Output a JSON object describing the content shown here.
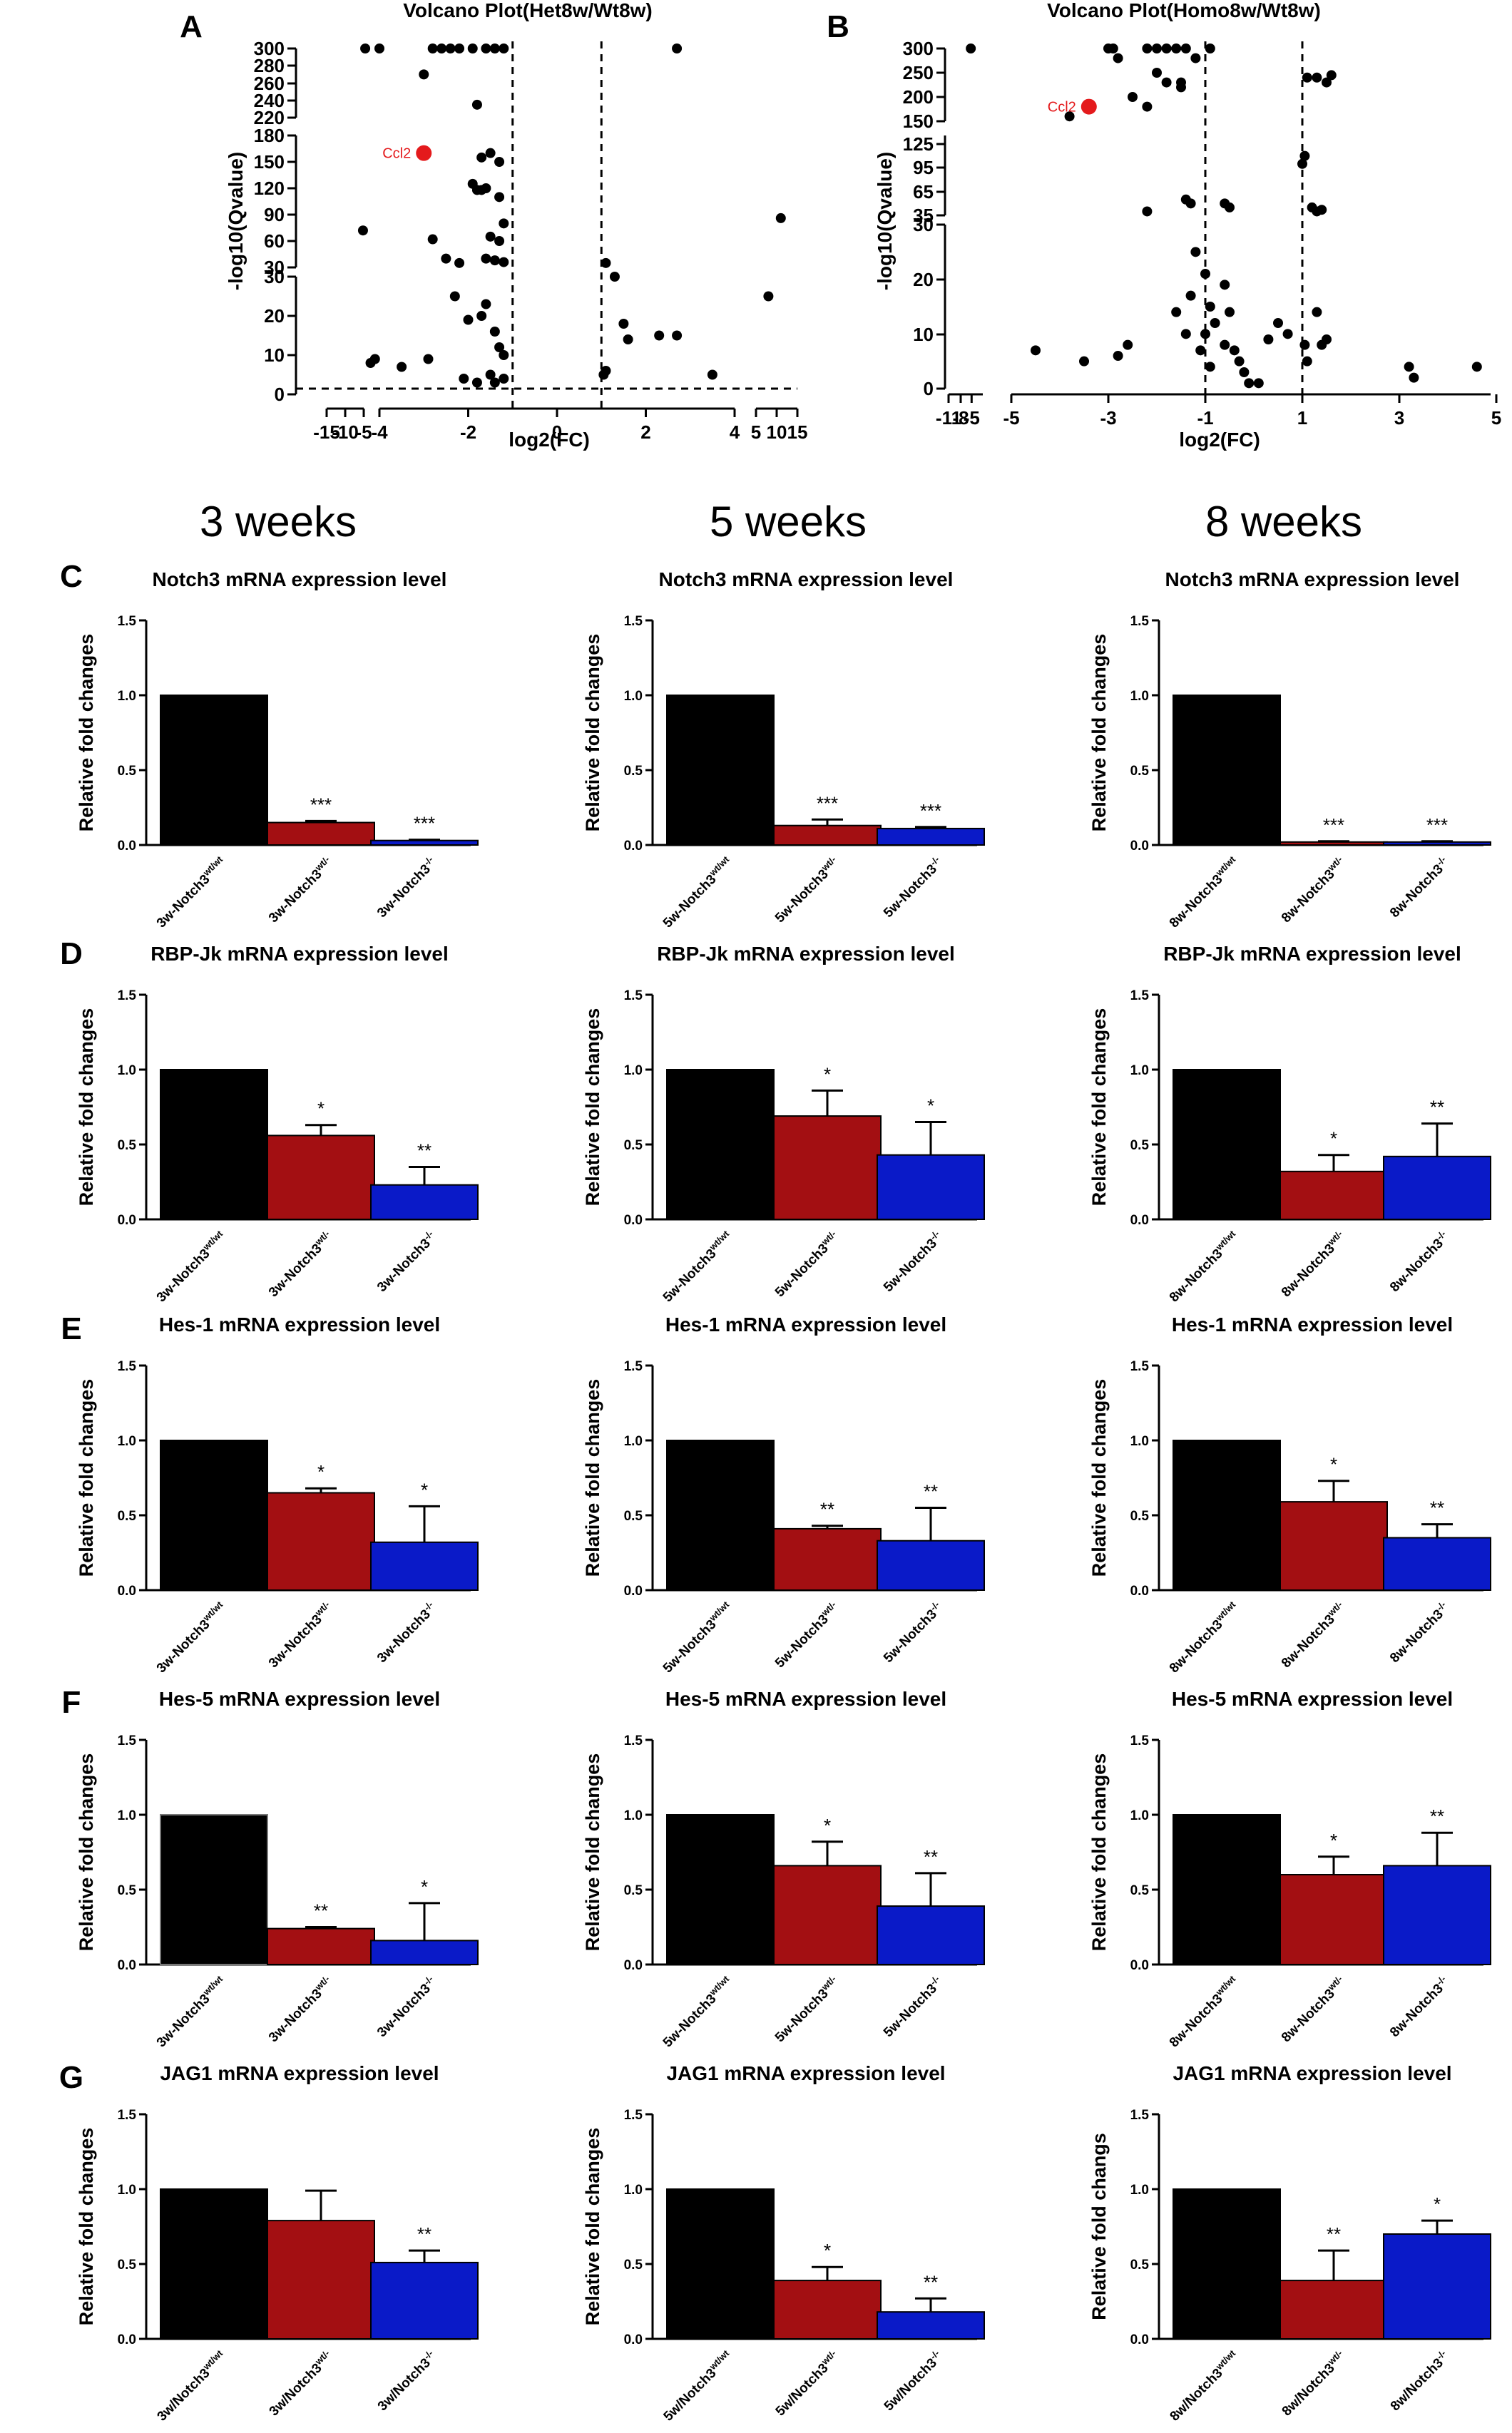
{
  "panel_letters": [
    "A",
    "B",
    "C",
    "D",
    "E",
    "F",
    "G"
  ],
  "weeks": [
    "3 weeks",
    "5 weeks",
    "8 weeks"
  ],
  "colors": {
    "wt": "#000000",
    "het": "#a30f12",
    "homo": "#0a1ac8",
    "ccl2": "#e41a1c",
    "point": "#000000"
  },
  "chart_data": [
    {
      "type": "scatter",
      "title": "Volcano Plot(Het8w/Wt8w)",
      "xlabel": "log2(FC)",
      "ylabel": "-log10(Qvalue)",
      "xticks": [
        "-15",
        "-10",
        "-5",
        "-4",
        "-2",
        "0",
        "2",
        "4",
        "5",
        "10",
        "15"
      ],
      "yticks": [
        "0",
        "10",
        "20",
        "30",
        "30",
        "60",
        "90",
        "120",
        "150",
        "180",
        "220",
        "240",
        "260",
        "280",
        "300"
      ],
      "thresholds": {
        "log2fc": [
          -1,
          1
        ],
        "qvalue_line": 1.3
      },
      "highlight": {
        "label": "Ccl2",
        "x": -3.0,
        "y": 160
      },
      "points": [
        [
          -4.6,
          300
        ],
        [
          -4.0,
          300
        ],
        [
          -2.8,
          300
        ],
        [
          -2.6,
          300
        ],
        [
          -2.4,
          300
        ],
        [
          -2.2,
          300
        ],
        [
          -1.9,
          300
        ],
        [
          -1.6,
          300
        ],
        [
          -1.4,
          300
        ],
        [
          -1.2,
          300
        ],
        [
          -3.0,
          270
        ],
        [
          -1.8,
          235
        ],
        [
          2.7,
          300
        ],
        [
          -5.2,
          72
        ],
        [
          -4.2,
          8
        ],
        [
          -4.1,
          9
        ],
        [
          -3.5,
          7
        ],
        [
          -2.8,
          62
        ],
        [
          -2.5,
          40
        ],
        [
          -2.2,
          35
        ],
        [
          -1.7,
          155
        ],
        [
          -1.5,
          160
        ],
        [
          -1.3,
          150
        ],
        [
          -1.6,
          120
        ],
        [
          -1.9,
          125
        ],
        [
          -1.8,
          118
        ],
        [
          -1.7,
          118
        ],
        [
          -1.3,
          110
        ],
        [
          -1.2,
          80
        ],
        [
          -1.5,
          65
        ],
        [
          -1.3,
          60
        ],
        [
          -1.6,
          40
        ],
        [
          -1.4,
          38
        ],
        [
          -1.2,
          36
        ],
        [
          -2.3,
          25
        ],
        [
          -2.0,
          19
        ],
        [
          -1.6,
          23
        ],
        [
          -1.7,
          20
        ],
        [
          -1.4,
          16
        ],
        [
          -1.3,
          12
        ],
        [
          -1.2,
          10
        ],
        [
          -1.5,
          5
        ],
        [
          -1.4,
          3
        ],
        [
          -1.2,
          4
        ],
        [
          -2.9,
          9
        ],
        [
          -2.1,
          4
        ],
        [
          -1.8,
          3
        ],
        [
          1.1,
          35
        ],
        [
          1.3,
          30
        ],
        [
          1.5,
          18
        ],
        [
          1.6,
          14
        ],
        [
          1.05,
          5
        ],
        [
          1.1,
          6
        ],
        [
          2.3,
          15
        ],
        [
          2.7,
          15
        ],
        [
          3.5,
          5
        ],
        [
          11,
          86
        ],
        [
          8,
          25
        ]
      ]
    },
    {
      "type": "scatter",
      "title": "Volcano Plot(Homo8w/Wt8w)",
      "xlabel": "log2(FC)",
      "ylabel": "-log10(Qvalue)",
      "xticks": [
        "-11",
        "-8",
        "-5",
        "-5",
        "-3",
        "-1",
        "1",
        "3",
        "5"
      ],
      "yticks": [
        "0",
        "10",
        "20",
        "30",
        "35",
        "65",
        "95",
        "125",
        "150",
        "200",
        "250",
        "300"
      ],
      "thresholds": {
        "log2fc": [
          -1,
          1
        ]
      },
      "highlight": {
        "label": "Ccl2",
        "x": -3.4,
        "y": 180
      },
      "points": [
        [
          -5.5,
          300
        ],
        [
          -3.0,
          300
        ],
        [
          -2.9,
          300
        ],
        [
          -2.8,
          280
        ],
        [
          -2.2,
          300
        ],
        [
          -2.0,
          300
        ],
        [
          -1.8,
          300
        ],
        [
          -1.6,
          300
        ],
        [
          -1.4,
          300
        ],
        [
          -2.0,
          250
        ],
        [
          -1.8,
          230
        ],
        [
          -1.5,
          230
        ],
        [
          -1.2,
          280
        ],
        [
          -2.5,
          200
        ],
        [
          -2.2,
          180
        ],
        [
          -3.8,
          160
        ],
        [
          -1.5,
          220
        ],
        [
          -0.9,
          300
        ],
        [
          1.1,
          240
        ],
        [
          1.3,
          240
        ],
        [
          1.5,
          230
        ],
        [
          1.6,
          245
        ],
        [
          1.0,
          100
        ],
        [
          1.05,
          110
        ],
        [
          1.2,
          45
        ],
        [
          1.3,
          40
        ],
        [
          1.4,
          42
        ],
        [
          -2.2,
          40
        ],
        [
          -1.4,
          55
        ],
        [
          -1.3,
          50
        ],
        [
          -0.6,
          50
        ],
        [
          -0.5,
          45
        ],
        [
          -1.2,
          25
        ],
        [
          -1.0,
          21
        ],
        [
          -1.3,
          17
        ],
        [
          -0.9,
          15
        ],
        [
          -0.5,
          14
        ],
        [
          -0.6,
          19
        ],
        [
          -1.0,
          10
        ],
        [
          -0.8,
          12
        ],
        [
          -0.6,
          8
        ],
        [
          -0.4,
          7
        ],
        [
          -0.3,
          5
        ],
        [
          -0.2,
          3
        ],
        [
          -0.1,
          1
        ],
        [
          0.1,
          1
        ],
        [
          0.3,
          9
        ],
        [
          0.5,
          12
        ],
        [
          0.7,
          10
        ],
        [
          1.05,
          8
        ],
        [
          1.1,
          5
        ],
        [
          1.3,
          14
        ],
        [
          1.4,
          8
        ],
        [
          1.5,
          9
        ],
        [
          -4.5,
          7
        ],
        [
          -3.5,
          5
        ],
        [
          -2.8,
          6
        ],
        [
          -2.6,
          8
        ],
        [
          -1.6,
          14
        ],
        [
          -1.4,
          10
        ],
        [
          -1.1,
          7
        ],
        [
          -0.9,
          4
        ],
        [
          3.2,
          4
        ],
        [
          3.3,
          2
        ],
        [
          4.6,
          4
        ]
      ]
    },
    {
      "type": "bar",
      "row": "C",
      "week": "3 weeks",
      "title": "Notch3  mRNA expression level",
      "ylabel": "Relative fold changes",
      "ylim": [
        0,
        1.5
      ],
      "yticks": [
        "0.0",
        "0.5",
        "1.0",
        "1.5"
      ],
      "categories": [
        "3w-Notch3wt/wt",
        "3w-Notch3wt/-",
        "3w-Notch3-/-"
      ],
      "values": [
        1.0,
        0.15,
        0.03
      ],
      "errors": [
        0,
        0.01,
        0.005
      ],
      "significance": [
        "",
        "***",
        "***"
      ]
    },
    {
      "type": "bar",
      "row": "C",
      "week": "5 weeks",
      "title": "Notch3  mRNA expression level",
      "ylabel": "Relative fold changes",
      "ylim": [
        0,
        1.5
      ],
      "yticks": [
        "0.0",
        "0.5",
        "1.0",
        "1.5"
      ],
      "categories": [
        "5w-Notch3wt/wt",
        "5w-Notch3wt/-",
        "5w-Notch3-/-"
      ],
      "values": [
        1.0,
        0.13,
        0.11
      ],
      "errors": [
        0,
        0.04,
        0.01
      ],
      "significance": [
        "",
        "***",
        "***"
      ]
    },
    {
      "type": "bar",
      "row": "C",
      "week": "8 weeks",
      "title": "Notch3  mRNA expression level",
      "ylabel": "Relative fold changes",
      "ylim": [
        0,
        1.5
      ],
      "yticks": [
        "0.0",
        "0.5",
        "1.0",
        "1.5"
      ],
      "categories": [
        "8w-Notch3wt/wt",
        "8w-Notch3wt/-",
        "8w-Notch3-/-"
      ],
      "values": [
        1.0,
        0.02,
        0.02
      ],
      "errors": [
        0,
        0.005,
        0.005
      ],
      "significance": [
        "",
        "***",
        "***"
      ]
    },
    {
      "type": "bar",
      "row": "D",
      "week": "3 weeks",
      "title": "RBP-Jk mRNA expression level",
      "ylabel": "Relative fold changes",
      "ylim": [
        0,
        1.5
      ],
      "yticks": [
        "0.0",
        "0.5",
        "1.0",
        "1.5"
      ],
      "categories": [
        "3w-Notch3wt/wt",
        "3w-Notch3wt/-",
        "3w-Notch3-/-"
      ],
      "values": [
        1.0,
        0.56,
        0.23
      ],
      "errors": [
        0,
        0.07,
        0.12
      ],
      "significance": [
        "",
        "*",
        "**"
      ]
    },
    {
      "type": "bar",
      "row": "D",
      "week": "5 weeks",
      "title": "RBP-Jk mRNA expression level",
      "ylabel": "Relative fold changes",
      "ylim": [
        0,
        1.5
      ],
      "yticks": [
        "0.0",
        "0.5",
        "1.0",
        "1.5"
      ],
      "categories": [
        "5w-Notch3wt/wt",
        "5w-Notch3wt/-",
        "5w-Notch3-/-"
      ],
      "values": [
        1.0,
        0.69,
        0.43
      ],
      "errors": [
        0,
        0.17,
        0.22
      ],
      "significance": [
        "",
        "*",
        "*"
      ]
    },
    {
      "type": "bar",
      "row": "D",
      "week": "8 weeks",
      "title": "RBP-Jk mRNA expression level",
      "ylabel": "Relative fold changes",
      "ylim": [
        0,
        1.5
      ],
      "yticks": [
        "0.0",
        "0.5",
        "1.0",
        "1.5"
      ],
      "categories": [
        "8w-Notch3wt/wt",
        "8w-Notch3wt/-",
        "8w-Notch3-/-"
      ],
      "values": [
        1.0,
        0.32,
        0.42
      ],
      "errors": [
        0,
        0.11,
        0.22
      ],
      "significance": [
        "",
        "*",
        "**"
      ]
    },
    {
      "type": "bar",
      "row": "E",
      "week": "3 weeks",
      "title": "Hes-1 mRNA expression level",
      "ylabel": "Relative fold changes",
      "ylim": [
        0,
        1.5
      ],
      "yticks": [
        "0.0",
        "0.5",
        "1.0",
        "1.5"
      ],
      "categories": [
        "3w-Notch3wt/wt",
        "3w-Notch3wt/-",
        "3w-Notch3-/-"
      ],
      "values": [
        1.0,
        0.65,
        0.32
      ],
      "errors": [
        0,
        0.03,
        0.24
      ],
      "significance": [
        "",
        "*",
        "*"
      ]
    },
    {
      "type": "bar",
      "row": "E",
      "week": "5 weeks",
      "title": "Hes-1 mRNA expression level",
      "ylabel": "Relative fold changes",
      "ylim": [
        0,
        1.5
      ],
      "yticks": [
        "0.0",
        "0.5",
        "1.0",
        "1.5"
      ],
      "categories": [
        "5w-Notch3wt/wt",
        "5w-Notch3wt/-",
        "5w-Notch3-/-"
      ],
      "values": [
        1.0,
        0.41,
        0.33
      ],
      "errors": [
        0,
        0.02,
        0.22
      ],
      "significance": [
        "",
        "**",
        "**"
      ]
    },
    {
      "type": "bar",
      "row": "E",
      "week": "8 weeks",
      "title": "Hes-1 mRNA expression level",
      "ylabel": "Relative fold changes",
      "ylim": [
        0,
        1.5
      ],
      "yticks": [
        "0.0",
        "0.5",
        "1.0",
        "1.5"
      ],
      "categories": [
        "8w-Notch3wt/wt",
        "8w-Notch3wt/-",
        "8w-Notch3-/-"
      ],
      "values": [
        1.0,
        0.59,
        0.35
      ],
      "errors": [
        0,
        0.14,
        0.09
      ],
      "significance": [
        "",
        "*",
        "**"
      ]
    },
    {
      "type": "bar",
      "row": "F",
      "week": "3 weeks",
      "title": "Hes-5 mRNA expression level",
      "ylabel": "Relative fold changes",
      "ylim": [
        0,
        1.5
      ],
      "yticks": [
        "0.0",
        "0.5",
        "1.0",
        "1.5"
      ],
      "categories": [
        "3w-Notch3wt/wt",
        "3w-Notch3wt/-",
        "3w-Notch3-/-"
      ],
      "values": [
        1.0,
        0.24,
        0.16
      ],
      "errors": [
        0,
        0.01,
        0.25
      ],
      "significance": [
        "",
        "**",
        "*"
      ]
    },
    {
      "type": "bar",
      "row": "F",
      "week": "5 weeks",
      "title": "Hes-5 mRNA expression level",
      "ylabel": "Relative fold changes",
      "ylim": [
        0,
        1.5
      ],
      "yticks": [
        "0.0",
        "0.5",
        "1.0",
        "1.5"
      ],
      "categories": [
        "5w-Notch3wt/wt",
        "5w-Notch3wt/-",
        "5w-Notch3-/-"
      ],
      "values": [
        1.0,
        0.66,
        0.39
      ],
      "errors": [
        0,
        0.16,
        0.22
      ],
      "significance": [
        "",
        "*",
        "**"
      ]
    },
    {
      "type": "bar",
      "row": "F",
      "week": "8 weeks",
      "title": "Hes-5 mRNA expression level",
      "ylabel": "Relative fold changes",
      "ylim": [
        0,
        1.5
      ],
      "yticks": [
        "0.0",
        "0.5",
        "1.0",
        "1.5"
      ],
      "categories": [
        "8w-Notch3wt/wt",
        "8w-Notch3wt/-",
        "8w-Notch3-/-"
      ],
      "values": [
        1.0,
        0.6,
        0.66
      ],
      "errors": [
        0,
        0.12,
        0.22
      ],
      "significance": [
        "",
        "*",
        "**"
      ]
    },
    {
      "type": "bar",
      "row": "G",
      "week": "3 weeks",
      "title": "JAG1 mRNA expression level",
      "ylabel": "Relative fold changes",
      "ylim": [
        0,
        1.5
      ],
      "yticks": [
        "0.0",
        "0.5",
        "1.0",
        "1.5"
      ],
      "categories": [
        "3w/Notch3wt/wt",
        "3w/Notch3wt/-",
        "3w/Notch3-/-"
      ],
      "values": [
        1.0,
        0.79,
        0.51
      ],
      "errors": [
        0,
        0.2,
        0.08
      ],
      "significance": [
        "",
        "",
        "**"
      ]
    },
    {
      "type": "bar",
      "row": "G",
      "week": "5 weeks",
      "title": "JAG1 mRNA expression level",
      "ylabel": "Relative fold changes",
      "ylim": [
        0,
        1.5
      ],
      "yticks": [
        "0.0",
        "0.5",
        "1.0",
        "1.5"
      ],
      "categories": [
        "5w/Notch3wt/wt",
        "5w/Notch3wt/-",
        "5w/Notch3-/-"
      ],
      "values": [
        1.0,
        0.39,
        0.18
      ],
      "errors": [
        0,
        0.09,
        0.09
      ],
      "significance": [
        "",
        "*",
        "**"
      ]
    },
    {
      "type": "bar",
      "row": "G",
      "week": "8 weeks",
      "title": "JAG1 mRNA expression level",
      "ylabel": "Relative fold changs",
      "ylim": [
        0,
        1.5
      ],
      "yticks": [
        "0.0",
        "0.5",
        "1.0",
        "1.5"
      ],
      "categories": [
        "8w/Notch3wt/wt",
        "8w/Notch3wt/-",
        "8w/Notch3-/-"
      ],
      "values": [
        1.0,
        0.39,
        0.7
      ],
      "errors": [
        0,
        0.2,
        0.09
      ],
      "significance": [
        "",
        "**",
        "*"
      ]
    }
  ]
}
